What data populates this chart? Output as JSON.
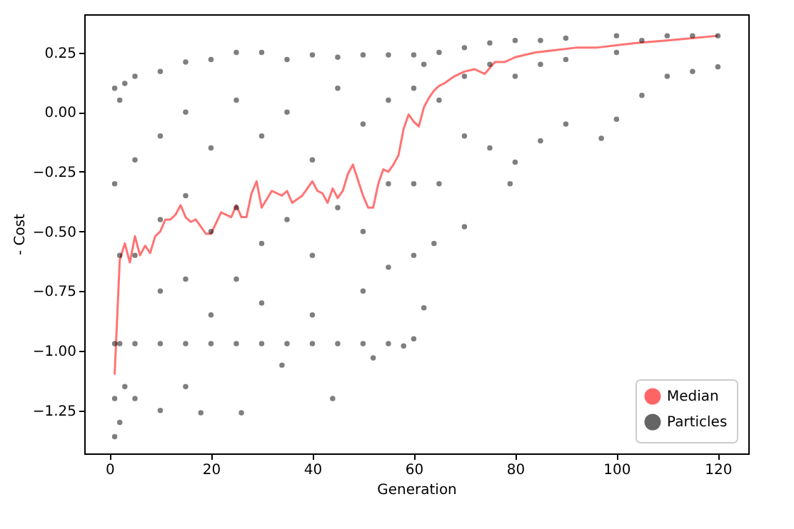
{
  "chart_data": {
    "type": "scatter",
    "xlabel": "Generation",
    "ylabel": "- Cost",
    "xlim": [
      -5,
      126
    ],
    "ylim": [
      -1.43,
      0.41
    ],
    "xticks": [
      0,
      20,
      40,
      60,
      80,
      100,
      120
    ],
    "yticks": [
      -1.25,
      {
        "value": -1,
        "label": "−1.00"
      },
      -0.75,
      {
        "value": -0.5,
        "label": "−0.50"
      },
      -0.25,
      {
        "value": 0,
        "label": "0.00"
      },
      0.25
    ],
    "grid": false,
    "legend": "bottom right",
    "series": [
      {
        "name": "Median",
        "type": "line",
        "color": "#ff0000",
        "x": [
          1,
          2,
          3,
          4,
          5,
          6,
          7,
          8,
          9,
          10,
          11,
          12,
          13,
          14,
          15,
          16,
          17,
          18,
          19,
          20,
          22,
          24,
          25,
          26,
          27,
          28,
          29,
          30,
          32,
          34,
          35,
          36,
          38,
          40,
          41,
          42,
          43,
          44,
          45,
          46,
          47,
          48,
          50,
          51,
          52,
          53,
          54,
          55,
          56,
          57,
          58,
          59,
          60,
          61,
          62,
          63,
          64,
          65,
          66,
          68,
          70,
          72,
          73,
          74,
          76,
          78,
          80,
          84,
          88,
          92,
          96,
          100,
          104,
          110,
          115,
          120
        ],
        "values": [
          -1.1,
          -0.62,
          -0.55,
          -0.63,
          -0.52,
          -0.6,
          -0.56,
          -0.59,
          -0.52,
          -0.5,
          -0.45,
          -0.45,
          -0.43,
          -0.39,
          -0.44,
          -0.46,
          -0.45,
          -0.48,
          -0.51,
          -0.51,
          -0.42,
          -0.44,
          -0.39,
          -0.44,
          -0.44,
          -0.34,
          -0.29,
          -0.4,
          -0.33,
          -0.35,
          -0.33,
          -0.38,
          -0.35,
          -0.29,
          -0.33,
          -0.34,
          -0.38,
          -0.32,
          -0.36,
          -0.33,
          -0.26,
          -0.22,
          -0.35,
          -0.4,
          -0.4,
          -0.3,
          -0.24,
          -0.25,
          -0.22,
          -0.18,
          -0.07,
          -0.01,
          -0.04,
          -0.06,
          0.02,
          0.06,
          0.09,
          0.11,
          0.12,
          0.15,
          0.17,
          0.18,
          0.17,
          0.16,
          0.21,
          0.21,
          0.23,
          0.25,
          0.26,
          0.27,
          0.27,
          0.28,
          0.29,
          0.3,
          0.31,
          0.32
        ]
      },
      {
        "name": "Particles",
        "marker": "circle",
        "color": "#000000",
        "x": [
          1,
          1,
          1,
          1,
          1,
          2,
          2,
          2,
          2,
          3,
          3,
          5,
          5,
          5,
          5,
          5,
          10,
          10,
          10,
          10,
          10,
          10,
          15,
          15,
          15,
          15,
          15,
          15,
          18,
          20,
          20,
          20,
          20,
          20,
          25,
          25,
          25,
          25,
          25,
          26,
          30,
          30,
          30,
          30,
          30,
          34,
          35,
          35,
          35,
          35,
          40,
          40,
          40,
          40,
          40,
          44,
          45,
          45,
          45,
          45,
          50,
          50,
          50,
          50,
          50,
          52,
          55,
          55,
          55,
          55,
          55,
          58,
          60,
          60,
          60,
          60,
          60,
          62,
          62,
          64,
          65,
          65,
          65,
          70,
          70,
          70,
          70,
          75,
          75,
          75,
          79,
          80,
          80,
          80,
          85,
          85,
          85,
          90,
          90,
          90,
          97,
          100,
          100,
          100,
          105,
          105,
          110,
          110,
          115,
          115,
          120,
          120
        ],
        "values": [
          0.1,
          -0.3,
          -0.97,
          -1.2,
          -1.36,
          0.05,
          -0.6,
          -0.97,
          -1.3,
          0.12,
          -1.15,
          0.15,
          -0.2,
          -0.6,
          -0.97,
          -1.2,
          0.17,
          -0.1,
          -0.45,
          -0.75,
          -0.97,
          -1.25,
          0.21,
          0.0,
          -0.35,
          -0.7,
          -0.97,
          -1.15,
          -1.26,
          0.22,
          -0.15,
          -0.5,
          -0.85,
          -0.97,
          0.25,
          0.05,
          -0.4,
          -0.7,
          -0.97,
          -1.26,
          0.25,
          -0.1,
          -0.55,
          -0.8,
          -0.97,
          -1.06,
          0.22,
          0.0,
          -0.45,
          -0.97,
          0.24,
          -0.2,
          -0.6,
          -0.85,
          -0.97,
          -1.2,
          0.23,
          0.1,
          -0.4,
          -0.97,
          0.24,
          -0.05,
          -0.5,
          -0.75,
          -0.97,
          -1.03,
          0.24,
          0.05,
          -0.3,
          -0.65,
          -0.97,
          -0.98,
          0.24,
          0.1,
          -0.3,
          -0.6,
          -0.95,
          -0.82,
          0.2,
          -0.55,
          0.25,
          0.05,
          -0.3,
          0.27,
          0.15,
          -0.1,
          -0.48,
          0.29,
          0.2,
          -0.15,
          -0.3,
          0.3,
          0.15,
          -0.21,
          0.3,
          0.2,
          -0.12,
          0.31,
          0.22,
          -0.05,
          -0.11,
          0.32,
          0.25,
          -0.03,
          0.3,
          0.07,
          0.32,
          0.15,
          0.32,
          0.17,
          0.32,
          0.19
        ]
      }
    ]
  }
}
